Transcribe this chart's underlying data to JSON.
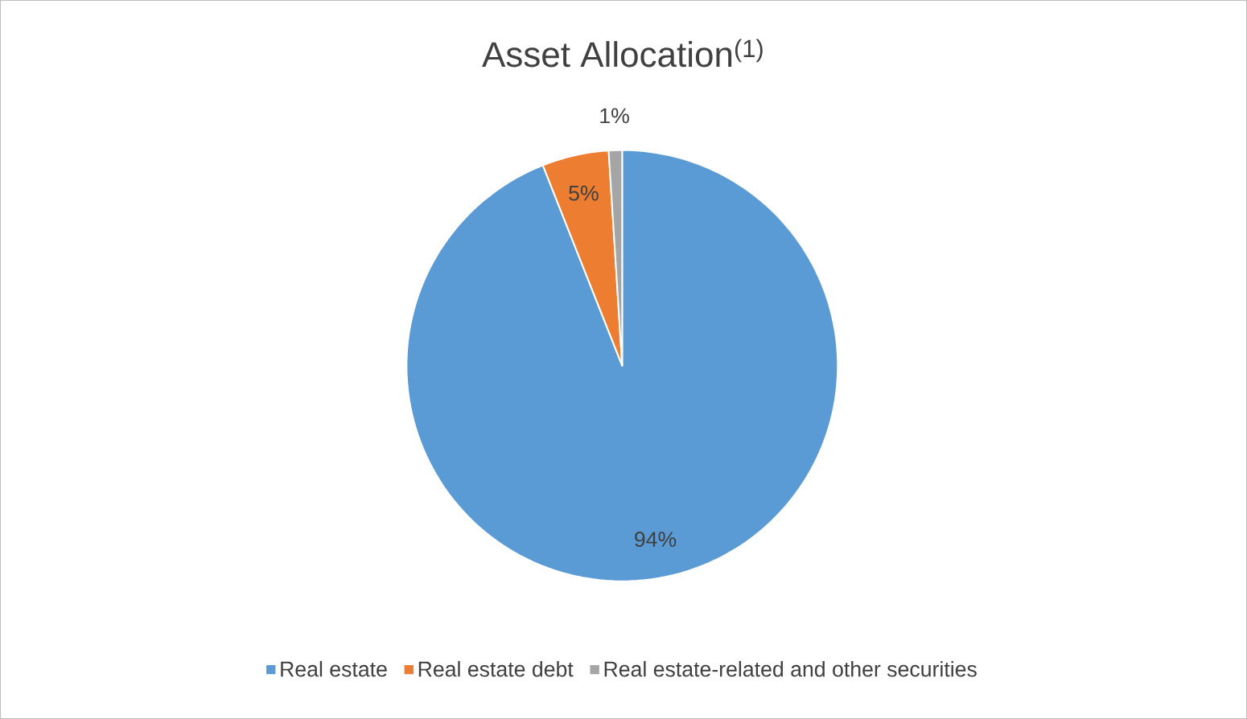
{
  "chart_data": {
    "type": "pie",
    "title": "Asset Allocation$^{(1)}$",
    "categories": [
      "Real estate",
      "Real estate debt",
      "Real estate-related and other securities"
    ],
    "values": [
      94,
      5,
      1
    ],
    "colors": [
      "#5b9bd5",
      "#ed7d31",
      "#a5a5a5"
    ],
    "value_labels": [
      "94%",
      "5%",
      "1%"
    ],
    "legend": "bottom"
  }
}
